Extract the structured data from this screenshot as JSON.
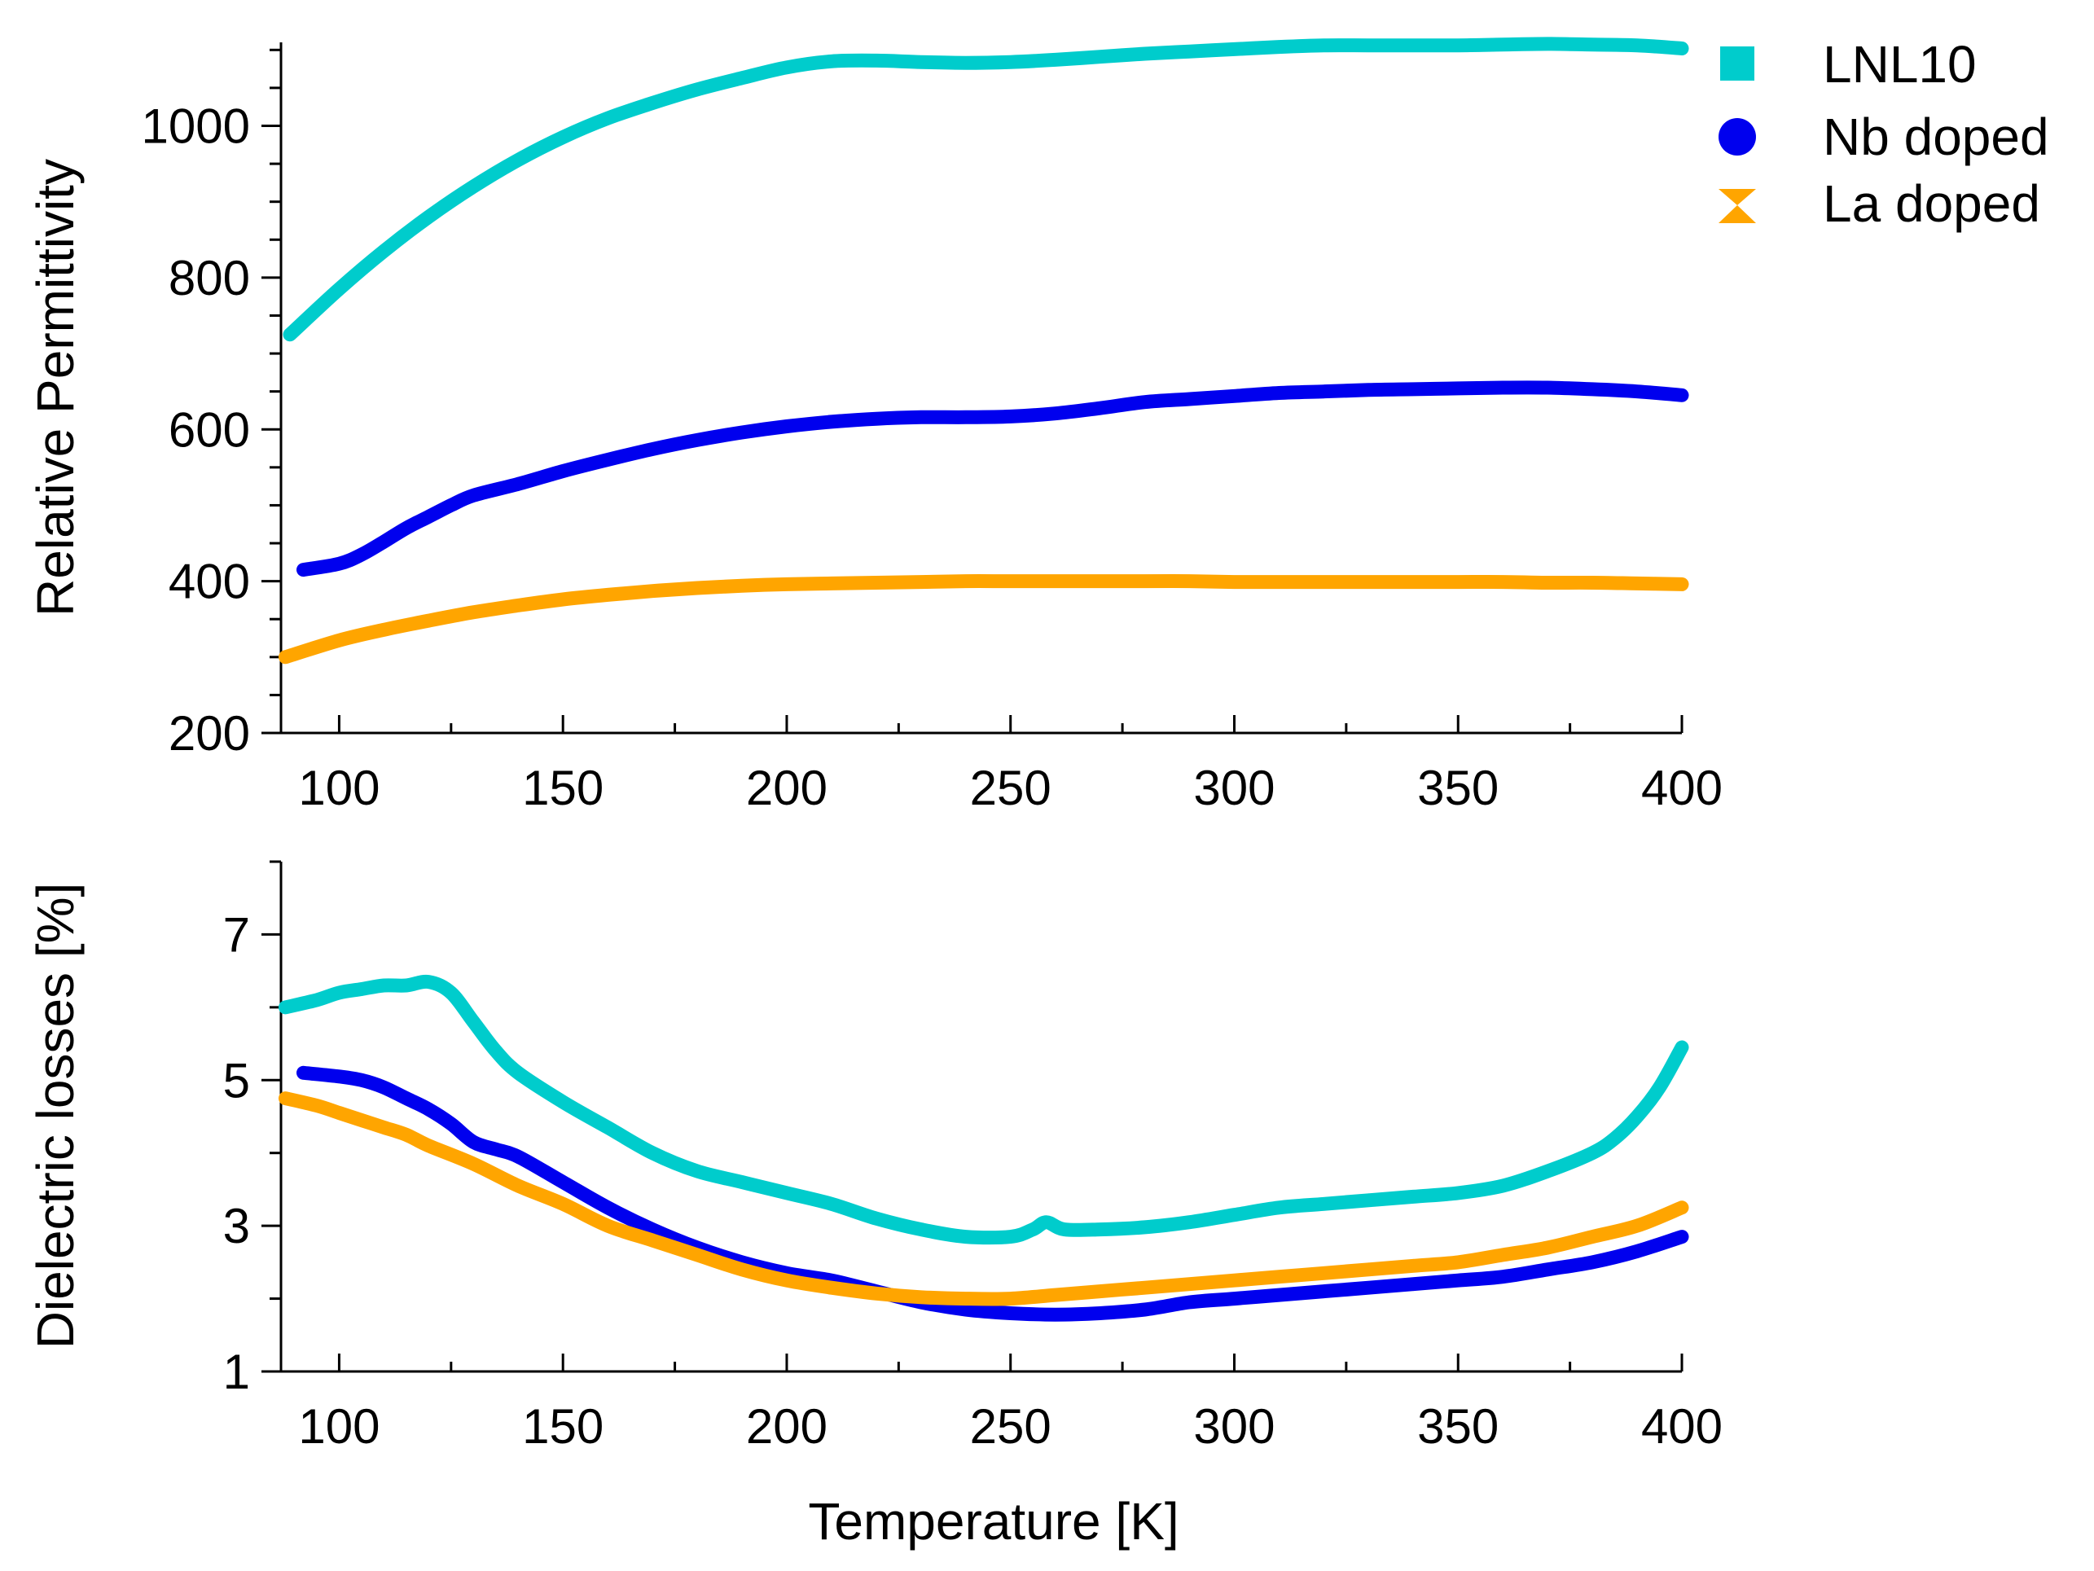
{
  "chart_data": [
    {
      "type": "line",
      "ylabel": "Relative Permittivity",
      "xlabel": "",
      "xlim": [
        87,
        400
      ],
      "ylim": [
        200,
        1110
      ],
      "xticks": [
        100,
        150,
        200,
        250,
        300,
        350,
        400
      ],
      "xtick_labels": [
        "100",
        "150",
        "200",
        "250",
        "300",
        "350",
        "400"
      ],
      "yticks": [
        200,
        400,
        600,
        800,
        1000
      ],
      "ytick_labels": [
        "200",
        "400",
        "600",
        "800",
        "1000"
      ],
      "legend": {
        "placement": "top-right-outside",
        "entries": [
          {
            "label": "LNL10",
            "marker": "square",
            "color": "#00CCCC"
          },
          {
            "label": "Nb doped",
            "marker": "circle",
            "color": "#0000EE"
          },
          {
            "label": "La doped",
            "marker": "hourglass",
            "color": "#FFA500"
          }
        ]
      },
      "series": [
        {
          "name": "LNL10",
          "color": "#00CCCC",
          "x": [
            89,
            100,
            110,
            120,
            130,
            140,
            150,
            160,
            170,
            180,
            190,
            200,
            210,
            220,
            230,
            240,
            250,
            260,
            270,
            280,
            290,
            300,
            310,
            320,
            330,
            340,
            350,
            360,
            370,
            380,
            390,
            400
          ],
          "y": [
            725,
            785,
            835,
            880,
            920,
            955,
            985,
            1010,
            1030,
            1048,
            1063,
            1077,
            1085,
            1086,
            1084,
            1083,
            1084,
            1087,
            1091,
            1095,
            1098,
            1101,
            1104,
            1106,
            1106,
            1106,
            1106,
            1107,
            1108,
            1107,
            1106,
            1102
          ]
        },
        {
          "name": "Nb doped",
          "color": "#0000EE",
          "x": [
            92,
            100,
            105,
            110,
            115,
            120,
            125,
            130,
            140,
            150,
            160,
            170,
            180,
            190,
            200,
            210,
            220,
            230,
            240,
            250,
            260,
            270,
            280,
            290,
            300,
            310,
            320,
            330,
            340,
            350,
            360,
            370,
            380,
            390,
            400
          ],
          "y": [
            415,
            423,
            435,
            452,
            470,
            485,
            500,
            513,
            528,
            545,
            560,
            574,
            586,
            596,
            604,
            610,
            614,
            616,
            616,
            617,
            621,
            628,
            636,
            640,
            644,
            648,
            650,
            652,
            653,
            654,
            655,
            655,
            653,
            650,
            645
          ]
        },
        {
          "name": "La doped",
          "color": "#FFA500",
          "x": [
            88,
            100,
            110,
            120,
            130,
            140,
            150,
            160,
            170,
            180,
            190,
            200,
            210,
            220,
            230,
            240,
            250,
            260,
            270,
            280,
            290,
            300,
            310,
            320,
            330,
            340,
            350,
            360,
            370,
            380,
            390,
            400
          ],
          "y": [
            300,
            322,
            336,
            348,
            359,
            368,
            376,
            382,
            387,
            391,
            394,
            396,
            397,
            398,
            399,
            400,
            400,
            400,
            400,
            400,
            400,
            399,
            399,
            399,
            399,
            399,
            399,
            399,
            398,
            398,
            397,
            396
          ]
        }
      ]
    },
    {
      "type": "line",
      "ylabel": "Dielectric losses [%]",
      "xlabel": "Temperature [K]",
      "xlim": [
        87,
        400
      ],
      "ylim": [
        1,
        8
      ],
      "xticks": [
        100,
        150,
        200,
        250,
        300,
        350,
        400
      ],
      "xtick_labels": [
        "100",
        "150",
        "200",
        "250",
        "300",
        "350",
        "400"
      ],
      "yticks": [
        1,
        3,
        5,
        7
      ],
      "ytick_labels": [
        "1",
        "3",
        "5",
        "7"
      ],
      "minor_yticks": [
        2,
        4,
        6,
        8
      ],
      "series": [
        {
          "name": "LNL10",
          "color": "#00CCCC",
          "x": [
            88,
            95,
            100,
            105,
            110,
            115,
            120,
            125,
            130,
            135,
            140,
            150,
            160,
            170,
            180,
            190,
            200,
            210,
            220,
            230,
            240,
            250,
            255,
            258,
            262,
            270,
            280,
            290,
            300,
            310,
            320,
            330,
            340,
            350,
            360,
            370,
            380,
            385,
            390,
            395,
            400
          ],
          "y": [
            6.0,
            6.1,
            6.2,
            6.25,
            6.3,
            6.3,
            6.35,
            6.2,
            5.8,
            5.4,
            5.1,
            4.7,
            4.35,
            4.0,
            3.75,
            3.6,
            3.45,
            3.3,
            3.1,
            2.95,
            2.85,
            2.85,
            2.95,
            3.05,
            2.95,
            2.95,
            2.98,
            3.05,
            3.15,
            3.25,
            3.3,
            3.35,
            3.4,
            3.45,
            3.55,
            3.75,
            4.0,
            4.2,
            4.5,
            4.9,
            5.45
          ]
        },
        {
          "name": "Nb doped",
          "color": "#0000EE",
          "x": [
            92,
            100,
            105,
            110,
            115,
            120,
            125,
            130,
            135,
            140,
            150,
            160,
            170,
            180,
            190,
            200,
            210,
            220,
            230,
            240,
            250,
            260,
            270,
            280,
            290,
            300,
            310,
            320,
            330,
            340,
            350,
            360,
            370,
            380,
            390,
            400
          ],
          "y": [
            5.1,
            5.05,
            5.0,
            4.9,
            4.75,
            4.6,
            4.4,
            4.15,
            4.05,
            3.95,
            3.6,
            3.25,
            2.95,
            2.7,
            2.5,
            2.35,
            2.25,
            2.1,
            1.95,
            1.85,
            1.8,
            1.78,
            1.8,
            1.85,
            1.95,
            2.0,
            2.05,
            2.1,
            2.15,
            2.2,
            2.25,
            2.3,
            2.4,
            2.5,
            2.65,
            2.85
          ]
        },
        {
          "name": "La doped",
          "color": "#FFA500",
          "x": [
            88,
            95,
            100,
            105,
            110,
            115,
            120,
            130,
            140,
            150,
            160,
            170,
            180,
            190,
            200,
            210,
            220,
            230,
            240,
            250,
            260,
            270,
            280,
            290,
            300,
            310,
            320,
            330,
            340,
            350,
            360,
            370,
            380,
            390,
            400
          ],
          "y": [
            4.75,
            4.65,
            4.55,
            4.45,
            4.35,
            4.25,
            4.1,
            3.85,
            3.55,
            3.3,
            3.0,
            2.8,
            2.6,
            2.4,
            2.25,
            2.15,
            2.07,
            2.02,
            2.0,
            2.0,
            2.05,
            2.1,
            2.15,
            2.2,
            2.25,
            2.3,
            2.35,
            2.4,
            2.45,
            2.5,
            2.6,
            2.7,
            2.85,
            3.0,
            3.25
          ]
        }
      ]
    }
  ]
}
